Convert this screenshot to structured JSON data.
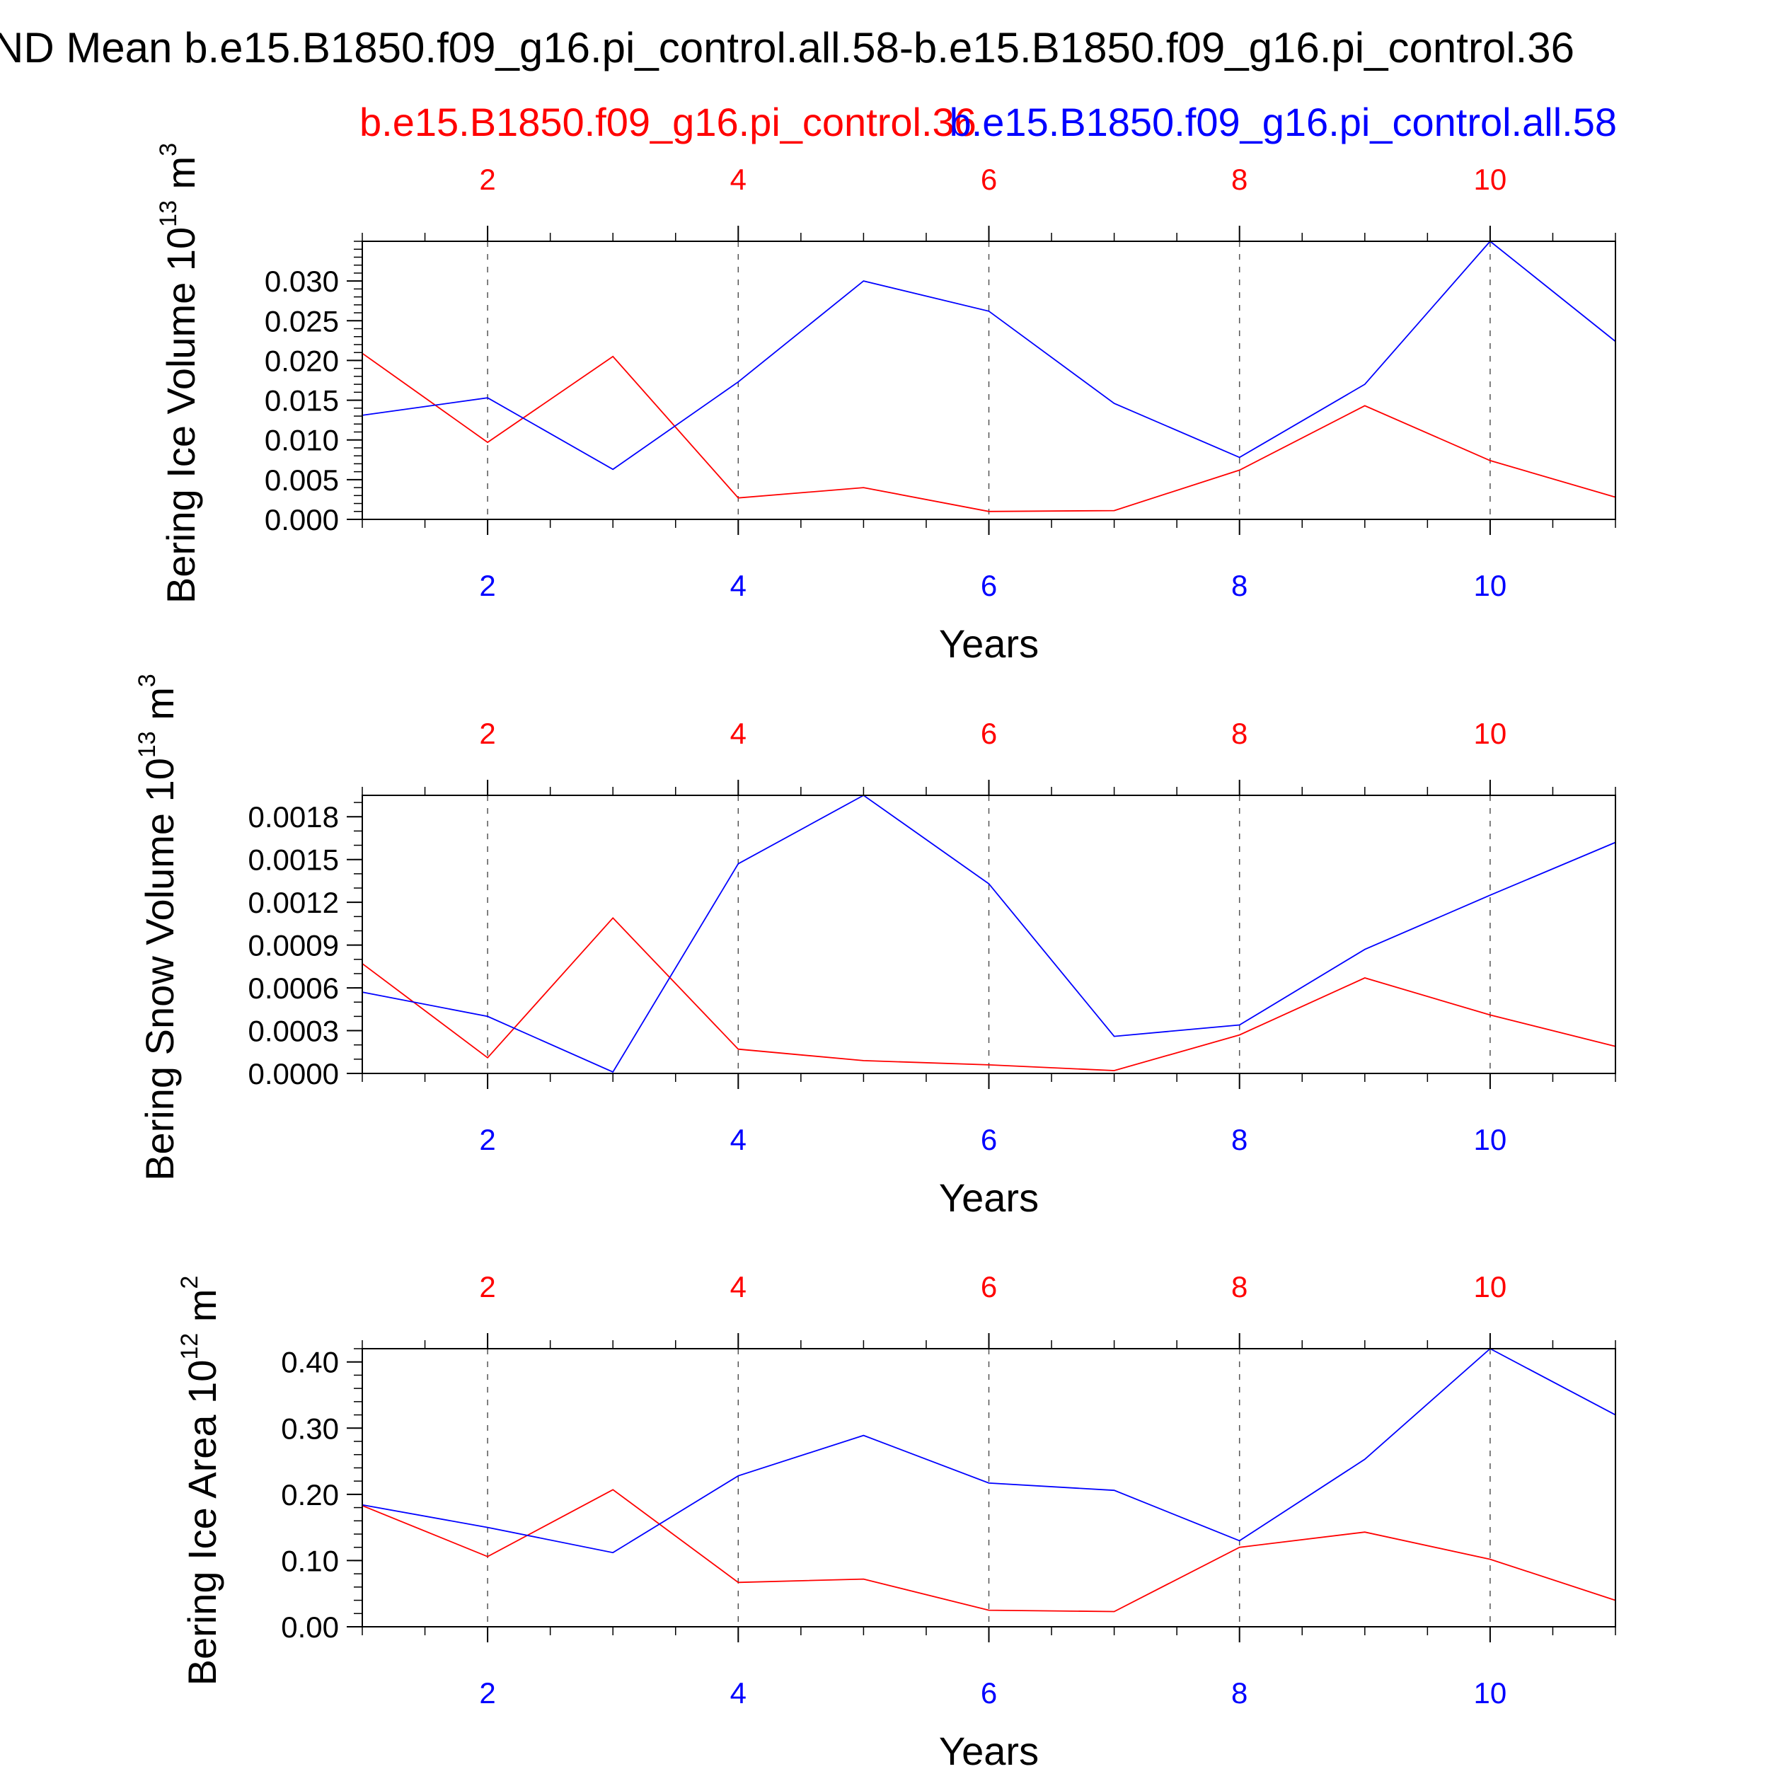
{
  "title": "ND Mean b.e15.B1850.f09_g16.pi_control.all.58-b.e15.B1850.f09_g16.pi_control.36",
  "colors": {
    "red": "#ff0000",
    "blue": "#0000ff",
    "axis": "#000000",
    "grid": "#555555"
  },
  "legend": {
    "red_label": "b.e15.B1850.f09_g16.pi_control.36",
    "blue_label": "b.e15.B1850.f09_g16.pi_control.all.58"
  },
  "chart_data": [
    {
      "type": "line",
      "xlabel": "Years",
      "ylabel": "Bering Ice Volume 10",
      "ylabel_exp": "13",
      "ylabel_unit": " m",
      "ylabel_unit_exp": "3",
      "xlim": [
        1,
        11
      ],
      "ylim": [
        0,
        0.035
      ],
      "xticks": [
        2,
        4,
        6,
        8,
        10
      ],
      "yticks": [
        0.0,
        0.005,
        0.01,
        0.015,
        0.02,
        0.025,
        0.03
      ],
      "ytick_labels": [
        "0.000",
        "0.005",
        "0.010",
        "0.015",
        "0.020",
        "0.025",
        "0.030"
      ],
      "yminor_step": 0.001,
      "x": [
        1,
        2,
        3,
        4,
        5,
        6,
        7,
        8,
        9,
        10,
        11
      ],
      "series": [
        {
          "name": "b.e15.B1850.f09_g16.pi_control.36",
          "color": "#ff0000",
          "values": [
            0.0209,
            0.0097,
            0.0205,
            0.0027,
            0.004,
            0.001,
            0.0011,
            0.0062,
            0.0143,
            0.0074,
            0.0028
          ]
        },
        {
          "name": "b.e15.B1850.f09_g16.pi_control.all.58",
          "color": "#0000ff",
          "values": [
            0.0131,
            0.0153,
            0.0063,
            0.0173,
            0.03,
            0.0262,
            0.0146,
            0.0078,
            0.017,
            0.035,
            0.0224
          ]
        }
      ]
    },
    {
      "type": "line",
      "xlabel": "Years",
      "ylabel": "Bering Snow Volume 10",
      "ylabel_exp": "13",
      "ylabel_unit": " m",
      "ylabel_unit_exp": "3",
      "xlim": [
        1,
        11
      ],
      "ylim": [
        0,
        0.00195
      ],
      "xticks": [
        2,
        4,
        6,
        8,
        10
      ],
      "yticks": [
        0.0,
        0.0003,
        0.0006,
        0.0009,
        0.0012,
        0.0015,
        0.0018
      ],
      "ytick_labels": [
        "0.0000",
        "0.0003",
        "0.0006",
        "0.0009",
        "0.0012",
        "0.0015",
        "0.0018"
      ],
      "yminor_step": 0.0001,
      "x": [
        1,
        2,
        3,
        4,
        5,
        6,
        7,
        8,
        9,
        10,
        11
      ],
      "series": [
        {
          "name": "b.e15.B1850.f09_g16.pi_control.36",
          "color": "#ff0000",
          "values": [
            0.00077,
            0.00011,
            0.00109,
            0.00017,
            9e-05,
            6e-05,
            2e-05,
            0.00027,
            0.00067,
            0.00041,
            0.00019
          ]
        },
        {
          "name": "b.e15.B1850.f09_g16.pi_control.all.58",
          "color": "#0000ff",
          "values": [
            0.00057,
            0.0004,
            1e-05,
            0.00147,
            0.00195,
            0.00133,
            0.00026,
            0.00034,
            0.00087,
            0.00125,
            0.00162
          ]
        }
      ]
    },
    {
      "type": "line",
      "xlabel": "Years",
      "ylabel": "Bering Ice Area 10",
      "ylabel_exp": "12",
      "ylabel_unit": " m",
      "ylabel_unit_exp": "2",
      "xlim": [
        1,
        11
      ],
      "ylim": [
        0,
        0.42
      ],
      "xticks": [
        2,
        4,
        6,
        8,
        10
      ],
      "yticks": [
        0.0,
        0.1,
        0.2,
        0.3,
        0.4
      ],
      "ytick_labels": [
        "0.00",
        "0.10",
        "0.20",
        "0.30",
        "0.40"
      ],
      "yminor_step": 0.02,
      "x": [
        1,
        2,
        3,
        4,
        5,
        6,
        7,
        8,
        9,
        10,
        11
      ],
      "series": [
        {
          "name": "b.e15.B1850.f09_g16.pi_control.36",
          "color": "#ff0000",
          "values": [
            0.183,
            0.106,
            0.207,
            0.067,
            0.072,
            0.025,
            0.023,
            0.12,
            0.143,
            0.102,
            0.04
          ]
        },
        {
          "name": "b.e15.B1850.f09_g16.pi_control.all.58",
          "color": "#0000ff",
          "values": [
            0.184,
            0.15,
            0.112,
            0.228,
            0.289,
            0.217,
            0.206,
            0.13,
            0.253,
            0.42,
            0.32
          ]
        }
      ]
    }
  ]
}
